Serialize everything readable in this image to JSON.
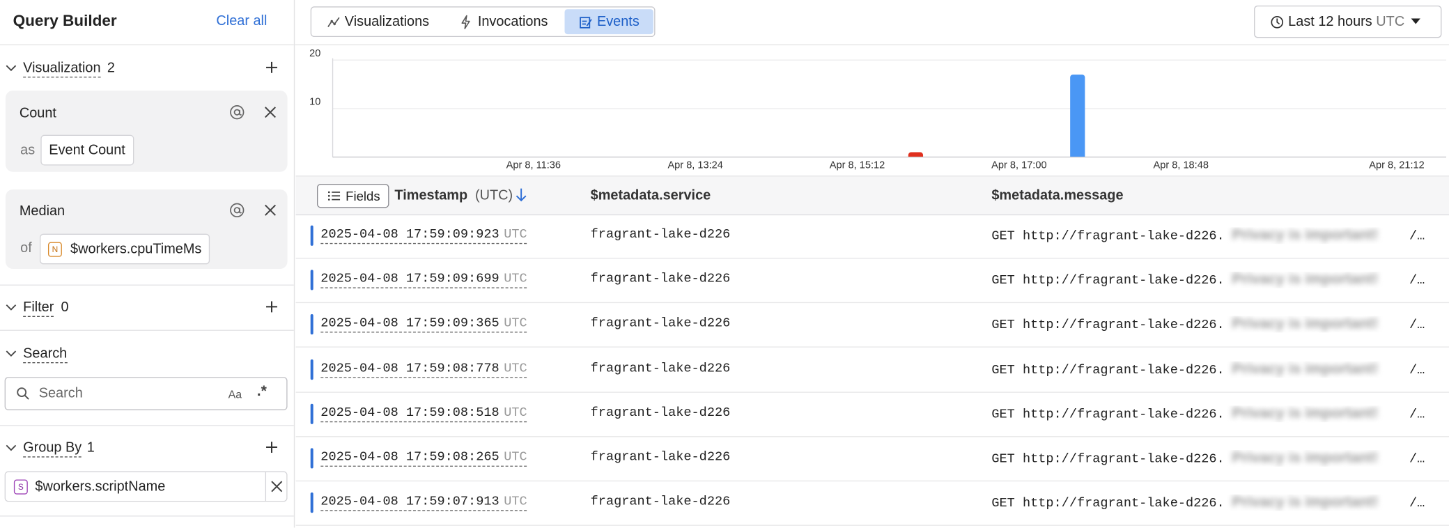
{
  "sidebar": {
    "title": "Query Builder",
    "clear": "Clear all",
    "visualization": {
      "label": "Visualization",
      "count": 2,
      "items": [
        {
          "fn": "Count",
          "joiner": "as",
          "arg": "Event Count"
        },
        {
          "fn": "Median",
          "joiner": "of",
          "badge": "N",
          "arg": "$workers.cpuTimeMs"
        }
      ]
    },
    "filter": {
      "label": "Filter",
      "count": 0
    },
    "search": {
      "label": "Search",
      "placeholder": "Search",
      "case": "Aa",
      "regex": ".*"
    },
    "group_by": {
      "label": "Group By",
      "count": 1,
      "items": [
        {
          "badge": "S",
          "arg": "$workers.scriptName"
        }
      ]
    }
  },
  "tabs": [
    "Visualizations",
    "Invocations",
    "Events"
  ],
  "active_tab": 2,
  "time_range": {
    "label": "Last 12 hours",
    "tz": "UTC"
  },
  "chart_data": {
    "type": "bar",
    "x": [
      "Apr 8, 15:51",
      "Apr 8, 17:39"
    ],
    "values": [
      1,
      17
    ],
    "colors": [
      "#e0301e",
      "#4a97f5"
    ],
    "xlim": [
      "Apr 8, 09:22",
      "Apr 8, 21:45"
    ],
    "xticks": [
      "Apr 8, 11:36",
      "Apr 8, 13:24",
      "Apr 8, 15:12",
      "Apr 8, 17:00",
      "Apr 8, 18:48",
      "Apr 8, 21:12"
    ],
    "ylim": [
      0,
      20
    ],
    "yticks": [
      10,
      20
    ],
    "grid": true
  },
  "table": {
    "fields_button": "Fields",
    "columns": [
      "Timestamp",
      "$metadata.service",
      "$metadata.message"
    ],
    "timestamp_unit": "(UTC)",
    "rows": [
      [
        "2025-04-08 17:59:09:923",
        "UTC",
        "fragrant-lake-d226",
        "GET http://fragrant-lake-d226.",
        "Privacy is important!",
        "/…"
      ],
      [
        "2025-04-08 17:59:09:699",
        "UTC",
        "fragrant-lake-d226",
        "GET http://fragrant-lake-d226.",
        "Privacy is important!",
        "/…"
      ],
      [
        "2025-04-08 17:59:09:365",
        "UTC",
        "fragrant-lake-d226",
        "GET http://fragrant-lake-d226.",
        "Privacy is important!",
        "/…"
      ],
      [
        "2025-04-08 17:59:08:778",
        "UTC",
        "fragrant-lake-d226",
        "GET http://fragrant-lake-d226.",
        "Privacy is important!",
        "/…"
      ],
      [
        "2025-04-08 17:59:08:518",
        "UTC",
        "fragrant-lake-d226",
        "GET http://fragrant-lake-d226.",
        "Privacy is important!",
        "/…"
      ],
      [
        "2025-04-08 17:59:08:265",
        "UTC",
        "fragrant-lake-d226",
        "GET http://fragrant-lake-d226.",
        "Privacy is important!",
        "/…"
      ],
      [
        "2025-04-08 17:59:07:913",
        "UTC",
        "fragrant-lake-d226",
        "GET http://fragrant-lake-d226.",
        "Privacy is important!",
        "/…"
      ]
    ]
  }
}
